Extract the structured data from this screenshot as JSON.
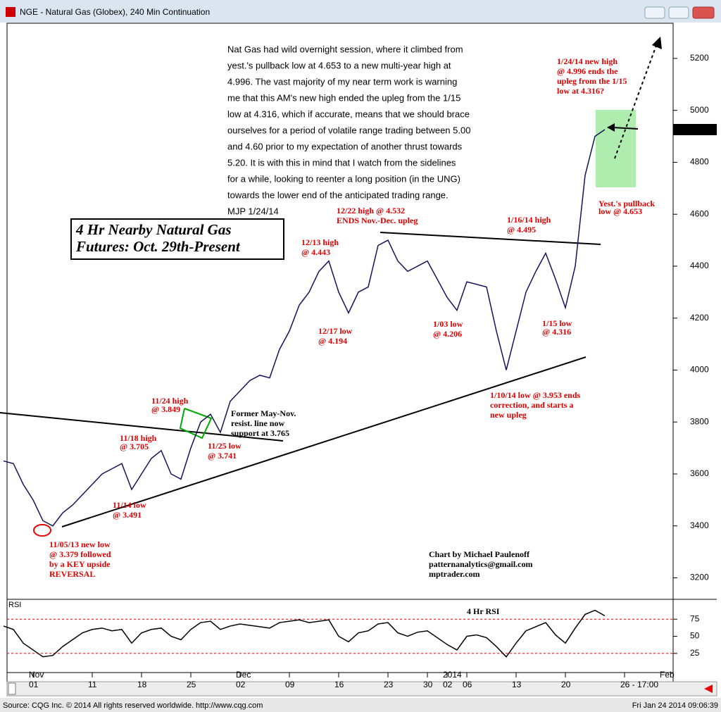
{
  "window": {
    "title": "NGE - Natural Gas (Globex), 240 Min Continuation"
  },
  "footer": {
    "source": "Source: CQG Inc. © 2014 All rights reserved worldwide. http://www.cqg.com",
    "timestamp": "Fri Jan 24 2014 09:06:39"
  },
  "chart_data": [
    {
      "type": "line",
      "title": [
        "4 Hr Nearby Natural Gas",
        "Futures:  Oct. 29th-Present"
      ],
      "categories": [
        null,
        null,
        null,
        "01",
        null,
        null,
        null,
        null,
        null,
        "11",
        null,
        null,
        null,
        null,
        "18",
        null,
        null,
        null,
        null,
        "25",
        null,
        null,
        null,
        null,
        "02",
        null,
        null,
        null,
        null,
        "09",
        null,
        null,
        null,
        null,
        "16",
        null,
        null,
        null,
        null,
        "23",
        null,
        null,
        null,
        "30",
        null,
        "02",
        null,
        "06",
        null,
        null,
        null,
        null,
        "13",
        null,
        null,
        null,
        null,
        "20",
        null,
        null,
        null,
        null,
        null,
        "26 - 17:00",
        null,
        null,
        null,
        null
      ],
      "months": [
        null,
        null,
        null,
        "Nov",
        null,
        null,
        null,
        null,
        null,
        null,
        null,
        null,
        null,
        null,
        null,
        null,
        null,
        null,
        null,
        null,
        null,
        null,
        null,
        null,
        "Dec",
        null,
        null,
        null,
        null,
        null,
        null,
        null,
        null,
        null,
        null,
        null,
        null,
        null,
        null,
        null,
        null,
        null,
        null,
        null,
        null,
        "2014",
        null,
        null,
        null,
        null,
        null,
        null,
        null,
        null,
        null,
        null,
        null,
        null,
        null,
        null,
        null,
        null,
        null,
        null,
        null,
        null,
        null,
        "Feb"
      ],
      "series": [
        {
          "name": "NGE",
          "color": "#14145a",
          "values": [
            3650,
            3640,
            3560,
            3500,
            3420,
            3400,
            3450,
            3480,
            3520,
            3560,
            3600,
            3620,
            3640,
            3540,
            3600,
            3660,
            3690,
            3600,
            3580,
            3700,
            3800,
            3830,
            3760,
            3880,
            3920,
            3960,
            3980,
            3970,
            4080,
            4150,
            4250,
            4300,
            4380,
            4420,
            4300,
            4220,
            4300,
            4320,
            4480,
            4500,
            4420,
            4380,
            4400,
            4420,
            4350,
            4280,
            4230,
            4340,
            4330,
            4320,
            4150,
            4000,
            4150,
            4300,
            4380,
            4450,
            4350,
            4240,
            4400,
            4750,
            4900,
            4926,
            null,
            null,
            null,
            null,
            null,
            null
          ]
        }
      ],
      "ylim": [
        3120,
        5330
      ],
      "yticks": [
        3200,
        3400,
        3600,
        3800,
        4000,
        4200,
        4400,
        4600,
        4800,
        5000,
        5200
      ],
      "annotations": [
        {
          "color": "#000000",
          "lines": [
            "Nat Gas had wild overnight session, where it climbed from",
            "yest.'s pullback low at 4.653 to a new multi-year high at",
            "4.996. The vast majority of my near term work is warning",
            "me that this AM's new high ended the upleg from the 1/15",
            "low at 4.316, which if accurate, means that we should brace",
            "ourselves for a period of volatile range trading between 5.00",
            "and 4.60 prior to my expectation of another thrust towards",
            "5.20. It is with this in mind that I watch from the sidelines",
            "for a while, looking to reenter a long position (in the UNG)",
            "towards the lower end of the anticipated trading range.",
            "MJP 1/24/14"
          ]
        },
        {
          "color": "#e00000",
          "lines": [
            "1/24/14 new high",
            "@ 4.996 ends the",
            "upleg from the 1/15",
            "low at 4.316?"
          ]
        },
        {
          "color": "#e00000",
          "lines": [
            "Yest.'s pullback",
            "low @ 4.653"
          ]
        },
        {
          "color": "#e00000",
          "lines": [
            "12/22 high @ 4.532",
            "ENDS Nov.-Dec. upleg"
          ]
        },
        {
          "color": "#e00000",
          "lines": [
            "1/16/14 high",
            "@ 4.495"
          ]
        },
        {
          "color": "#e00000",
          "lines": [
            "12/13 high",
            "@ 4.443"
          ]
        },
        {
          "color": "#e00000",
          "lines": [
            "12/17 low",
            "@ 4.194"
          ]
        },
        {
          "color": "#e00000",
          "lines": [
            "1/03 low",
            "@ 4.206"
          ]
        },
        {
          "color": "#e00000",
          "lines": [
            "1/15 low",
            "@ 4.316"
          ]
        },
        {
          "color": "#e00000",
          "lines": [
            "1/10/14 low @ 3.953 ends",
            "correction, and starts a",
            "new upleg"
          ]
        },
        {
          "color": "#e00000",
          "lines": [
            "11/24 high",
            "@ 3.849"
          ]
        },
        {
          "color": "#000000",
          "lines": [
            "Former May-Nov.",
            "resist. line now",
            "support at 3.765"
          ]
        },
        {
          "color": "#e00000",
          "lines": [
            "11/25 low",
            "@ 3.741"
          ]
        },
        {
          "color": "#e00000",
          "lines": [
            "11/18 high",
            "@ 3.705"
          ]
        },
        {
          "color": "#e00000",
          "lines": [
            "11/14 low",
            "@ 3.491"
          ]
        },
        {
          "color": "#e00000",
          "lines": [
            "11/05/13 new low",
            "@ 3.379 followed",
            "by a KEY upside",
            "REVERSAL"
          ]
        },
        {
          "color": "#000000",
          "lines": [
            "Chart by Michael Paulenoff",
            "patternanalytics@gmail.com",
            "mptrader.com"
          ]
        }
      ]
    },
    {
      "type": "line",
      "title": "4 Hr RSI",
      "axis_label": "RSI",
      "series": [
        {
          "name": "RSI",
          "color": "#000000",
          "values": [
            65,
            60,
            40,
            30,
            20,
            22,
            35,
            45,
            55,
            60,
            62,
            58,
            60,
            40,
            55,
            60,
            62,
            50,
            45,
            60,
            70,
            72,
            60,
            65,
            68,
            66,
            64,
            62,
            70,
            72,
            74,
            70,
            72,
            74,
            50,
            42,
            55,
            58,
            68,
            70,
            55,
            50,
            56,
            58,
            48,
            38,
            30,
            50,
            52,
            48,
            35,
            20,
            40,
            58,
            64,
            70,
            52,
            40,
            62,
            82,
            88,
            80,
            null,
            null,
            null,
            null,
            null,
            null
          ]
        }
      ],
      "ylim": [
        -3,
        103
      ],
      "yticks": [
        25,
        50,
        75
      ],
      "bands": [
        25,
        75
      ],
      "band_color": "#e00000"
    }
  ]
}
